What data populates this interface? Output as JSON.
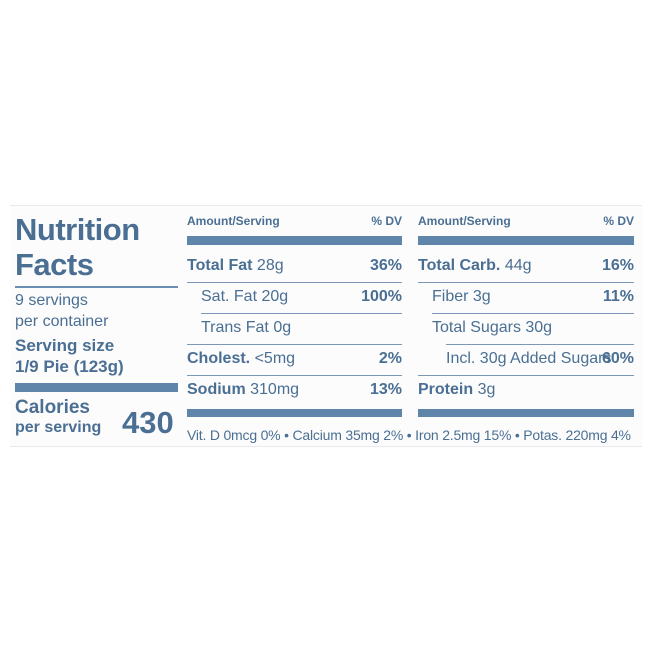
{
  "title_line1": "Nutrition",
  "title_line2": "Facts",
  "servings_line1": "9 servings",
  "servings_line2": "per container",
  "serving_size_line1": "Serving size",
  "serving_size_line2": "1/9 Pie (123g)",
  "calories_label": "Calories",
  "calories_sub": "per serving",
  "calories_value": "430",
  "header_amount": "Amount/Serving",
  "header_dv": "% DV",
  "left_column": [
    {
      "bold": "Total Fat",
      "value": " 28g",
      "dv": "36%"
    },
    {
      "bold": "",
      "value": "Sat. Fat 20g",
      "dv": "100%"
    },
    {
      "bold": "",
      "value": "Trans Fat 0g",
      "dv": ""
    },
    {
      "bold": "Cholest.",
      "value": " <5mg",
      "dv": "2%"
    },
    {
      "bold": "Sodium",
      "value": " 310mg",
      "dv": "13%"
    }
  ],
  "right_column": [
    {
      "bold": "Total Carb.",
      "value": " 44g",
      "dv": "16%"
    },
    {
      "bold": "",
      "value": "Fiber 3g",
      "dv": "11%"
    },
    {
      "bold": "",
      "value": "Total Sugars 30g",
      "dv": ""
    },
    {
      "bold": "",
      "value": "Incl. 30g Added Sugars",
      "dv": "60%"
    },
    {
      "bold": "Protein",
      "value": " 3g",
      "dv": ""
    }
  ],
  "vitamins": "Vit. D 0mcg 0% • Calcium 35mg 2% • Iron 2.5mg 15% • Potas. 220mg 4%"
}
